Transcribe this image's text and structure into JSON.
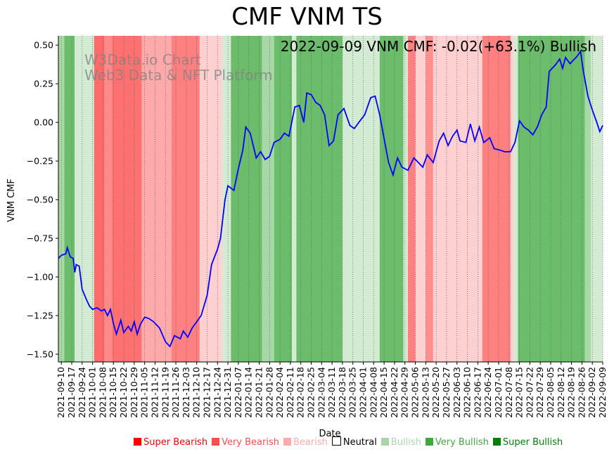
{
  "chart_data": {
    "type": "line",
    "title": "CMF VNM TS",
    "xlabel": "Date",
    "ylabel": "VNM CMF",
    "annotation": "2022-09-09 VNM CMF: -0.02(+63.1%) Bullish",
    "watermark": [
      "W3Data.io Chart",
      "Web3 Data & NFT Platform"
    ],
    "xlim": [
      "2021-09-08",
      "2022-09-09"
    ],
    "ylim": [
      -1.55,
      0.56
    ],
    "yticks": [
      0.5,
      0.25,
      0.0,
      -0.25,
      -0.5,
      -0.75,
      -1.0,
      -1.25,
      -1.5
    ],
    "ytick_labels": [
      "0.50",
      "0.25",
      "0.00",
      "−0.25",
      "−0.50",
      "−0.75",
      "−1.00",
      "−1.25",
      "−1.50"
    ],
    "xtick_labels": [
      "2021-09-10",
      "2021-09-17",
      "2021-09-24",
      "2021-10-01",
      "2021-10-08",
      "2021-10-15",
      "2021-10-22",
      "2021-10-29",
      "2021-11-05",
      "2021-11-12",
      "2021-11-19",
      "2021-11-26",
      "2021-12-03",
      "2021-12-10",
      "2021-12-17",
      "2021-12-24",
      "2021-12-31",
      "2022-01-07",
      "2022-01-14",
      "2022-01-21",
      "2022-01-28",
      "2022-02-04",
      "2022-02-11",
      "2022-02-18",
      "2022-02-25",
      "2022-03-04",
      "2022-03-11",
      "2022-03-18",
      "2022-03-25",
      "2022-04-01",
      "2022-04-08",
      "2022-04-15",
      "2022-04-22",
      "2022-04-29",
      "2022-05-06",
      "2022-05-13",
      "2022-05-20",
      "2022-05-27",
      "2022-06-03",
      "2022-06-10",
      "2022-06-17",
      "2022-06-24",
      "2022-07-01",
      "2022-07-08",
      "2022-07-15",
      "2022-07-22",
      "2022-07-29",
      "2022-08-05",
      "2022-08-12",
      "2022-08-19",
      "2022-08-26",
      "2022-09-02",
      "2022-09-09"
    ],
    "series": [
      {
        "color": "#0000ff",
        "points": [
          [
            "2021-09-08",
            -0.88
          ],
          [
            "2021-09-10",
            -0.86
          ],
          [
            "2021-09-13",
            -0.85
          ],
          [
            "2021-09-14",
            -0.81
          ],
          [
            "2021-09-16",
            -0.87
          ],
          [
            "2021-09-18",
            -0.88
          ],
          [
            "2021-09-19",
            -0.97
          ],
          [
            "2021-09-20",
            -0.92
          ],
          [
            "2021-09-22",
            -0.93
          ],
          [
            "2021-09-24",
            -1.08
          ],
          [
            "2021-09-27",
            -1.15
          ],
          [
            "2021-09-29",
            -1.19
          ],
          [
            "2021-10-01",
            -1.21
          ],
          [
            "2021-10-04",
            -1.2
          ],
          [
            "2021-10-07",
            -1.22
          ],
          [
            "2021-10-09",
            -1.21
          ],
          [
            "2021-10-11",
            -1.25
          ],
          [
            "2021-10-13",
            -1.21
          ],
          [
            "2021-10-15",
            -1.3
          ],
          [
            "2021-10-17",
            -1.37
          ],
          [
            "2021-10-20",
            -1.28
          ],
          [
            "2021-10-22",
            -1.36
          ],
          [
            "2021-10-25",
            -1.32
          ],
          [
            "2021-10-27",
            -1.35
          ],
          [
            "2021-10-29",
            -1.29
          ],
          [
            "2021-10-31",
            -1.37
          ],
          [
            "2021-11-02",
            -1.31
          ],
          [
            "2021-11-05",
            -1.26
          ],
          [
            "2021-11-08",
            -1.27
          ],
          [
            "2021-11-11",
            -1.29
          ],
          [
            "2021-11-15",
            -1.33
          ],
          [
            "2021-11-19",
            -1.42
          ],
          [
            "2021-11-22",
            -1.45
          ],
          [
            "2021-11-25",
            -1.38
          ],
          [
            "2021-11-29",
            -1.4
          ],
          [
            "2021-12-01",
            -1.35
          ],
          [
            "2021-12-04",
            -1.39
          ],
          [
            "2021-12-07",
            -1.33
          ],
          [
            "2021-12-10",
            -1.29
          ],
          [
            "2021-12-13",
            -1.25
          ],
          [
            "2021-12-17",
            -1.12
          ],
          [
            "2021-12-20",
            -0.92
          ],
          [
            "2021-12-24",
            -0.82
          ],
          [
            "2021-12-26",
            -0.75
          ],
          [
            "2021-12-29",
            -0.5
          ],
          [
            "2021-12-31",
            -0.41
          ],
          [
            "2022-01-04",
            -0.44
          ],
          [
            "2022-01-07",
            -0.3
          ],
          [
            "2022-01-10",
            -0.18
          ],
          [
            "2022-01-12",
            -0.03
          ],
          [
            "2022-01-15",
            -0.07
          ],
          [
            "2022-01-19",
            -0.23
          ],
          [
            "2022-01-22",
            -0.19
          ],
          [
            "2022-01-25",
            -0.24
          ],
          [
            "2022-01-28",
            -0.22
          ],
          [
            "2022-01-31",
            -0.13
          ],
          [
            "2022-02-04",
            -0.11
          ],
          [
            "2022-02-07",
            -0.07
          ],
          [
            "2022-02-10",
            -0.09
          ],
          [
            "2022-02-14",
            0.1
          ],
          [
            "2022-02-17",
            0.11
          ],
          [
            "2022-02-20",
            0.0
          ],
          [
            "2022-02-22",
            0.19
          ],
          [
            "2022-02-25",
            0.18
          ],
          [
            "2022-02-28",
            0.13
          ],
          [
            "2022-03-03",
            0.11
          ],
          [
            "2022-03-06",
            0.05
          ],
          [
            "2022-03-09",
            -0.15
          ],
          [
            "2022-03-12",
            -0.12
          ],
          [
            "2022-03-15",
            0.05
          ],
          [
            "2022-03-19",
            0.09
          ],
          [
            "2022-03-23",
            -0.02
          ],
          [
            "2022-03-26",
            -0.04
          ],
          [
            "2022-03-29",
            0.0
          ],
          [
            "2022-04-02",
            0.05
          ],
          [
            "2022-04-06",
            0.16
          ],
          [
            "2022-04-09",
            0.17
          ],
          [
            "2022-04-12",
            0.05
          ],
          [
            "2022-04-18",
            -0.26
          ],
          [
            "2022-04-21",
            -0.34
          ],
          [
            "2022-04-24",
            -0.23
          ],
          [
            "2022-04-27",
            -0.29
          ],
          [
            "2022-05-01",
            -0.31
          ],
          [
            "2022-05-05",
            -0.23
          ],
          [
            "2022-05-08",
            -0.26
          ],
          [
            "2022-05-11",
            -0.29
          ],
          [
            "2022-05-14",
            -0.21
          ],
          [
            "2022-05-18",
            -0.26
          ],
          [
            "2022-05-22",
            -0.12
          ],
          [
            "2022-05-25",
            -0.07
          ],
          [
            "2022-05-28",
            -0.15
          ],
          [
            "2022-05-31",
            -0.09
          ],
          [
            "2022-06-03",
            -0.05
          ],
          [
            "2022-06-05",
            -0.12
          ],
          [
            "2022-06-09",
            -0.13
          ],
          [
            "2022-06-12",
            -0.01
          ],
          [
            "2022-06-15",
            -0.12
          ],
          [
            "2022-06-18",
            -0.03
          ],
          [
            "2022-06-21",
            -0.13
          ],
          [
            "2022-06-25",
            -0.1
          ],
          [
            "2022-06-28",
            -0.17
          ],
          [
            "2022-07-02",
            -0.18
          ],
          [
            "2022-07-05",
            -0.19
          ],
          [
            "2022-07-09",
            -0.19
          ],
          [
            "2022-07-12",
            -0.13
          ],
          [
            "2022-07-15",
            0.01
          ],
          [
            "2022-07-18",
            -0.03
          ],
          [
            "2022-07-21",
            -0.05
          ],
          [
            "2022-07-24",
            -0.08
          ],
          [
            "2022-07-27",
            -0.03
          ],
          [
            "2022-07-30",
            0.05
          ],
          [
            "2022-08-02",
            0.1
          ],
          [
            "2022-08-04",
            0.33
          ],
          [
            "2022-08-08",
            0.37
          ],
          [
            "2022-08-11",
            0.41
          ],
          [
            "2022-08-13",
            0.35
          ],
          [
            "2022-08-15",
            0.42
          ],
          [
            "2022-08-18",
            0.38
          ],
          [
            "2022-08-21",
            0.41
          ],
          [
            "2022-08-23",
            0.43
          ],
          [
            "2022-08-25",
            0.46
          ],
          [
            "2022-08-27",
            0.33
          ],
          [
            "2022-08-30",
            0.17
          ],
          [
            "2022-09-02",
            0.08
          ],
          [
            "2022-09-05",
            0.0
          ],
          [
            "2022-09-07",
            -0.06
          ],
          [
            "2022-09-09",
            -0.02
          ]
        ]
      }
    ],
    "bands": [
      [
        "2021-09-08",
        "2021-09-12",
        "#a8d8a8"
      ],
      [
        "2021-09-12",
        "2021-09-19",
        "#6bbd6b"
      ],
      [
        "2021-09-19",
        "2021-10-02",
        "#d2ebd2"
      ],
      [
        "2021-10-02",
        "2021-10-09",
        "#ff6b6b"
      ],
      [
        "2021-10-09",
        "2021-10-14",
        "#ff8a8a"
      ],
      [
        "2021-10-14",
        "2021-11-03",
        "#ff7070"
      ],
      [
        "2021-11-03",
        "2021-11-23",
        "#ffaaaa"
      ],
      [
        "2021-11-23",
        "2021-12-12",
        "#ff8080"
      ],
      [
        "2021-12-12",
        "2021-12-27",
        "#ffd0d0"
      ],
      [
        "2021-12-27",
        "2022-01-02",
        "#d2ebd2"
      ],
      [
        "2022-01-02",
        "2022-01-23",
        "#6bbd6b"
      ],
      [
        "2022-01-23",
        "2022-01-31",
        "#a8d8a8"
      ],
      [
        "2022-01-31",
        "2022-02-12",
        "#6bbd6b"
      ],
      [
        "2022-02-12",
        "2022-02-15",
        "#d2ebd2"
      ],
      [
        "2022-02-15",
        "2022-03-18",
        "#6bbd6b"
      ],
      [
        "2022-03-18",
        "2022-04-12",
        "#d2ebd2"
      ],
      [
        "2022-04-12",
        "2022-04-28",
        "#6bbd6b"
      ],
      [
        "2022-04-28",
        "2022-05-01",
        "#d2ebd2"
      ],
      [
        "2022-05-01",
        "2022-05-06",
        "#ff8080"
      ],
      [
        "2022-05-06",
        "2022-05-13",
        "#ffd0d0"
      ],
      [
        "2022-05-13",
        "2022-05-18",
        "#ff9090"
      ],
      [
        "2022-05-18",
        "2022-06-20",
        "#ffd0d0"
      ],
      [
        "2022-06-20",
        "2022-07-09",
        "#ff8080"
      ],
      [
        "2022-07-09",
        "2022-07-11",
        "#ffd0d0"
      ],
      [
        "2022-07-11",
        "2022-07-14",
        "#d2ebd2"
      ],
      [
        "2022-07-14",
        "2022-08-28",
        "#6bbd6b"
      ],
      [
        "2022-08-28",
        "2022-09-01",
        "#a8d8a8"
      ],
      [
        "2022-09-01",
        "2022-09-09",
        "#d2ebd2"
      ]
    ],
    "legend": [
      {
        "label": "Super Bearish",
        "color": "#ff0000"
      },
      {
        "label": "Very Bearish",
        "color": "#ff4d4d"
      },
      {
        "label": "Bearish",
        "color": "#ffaaaa"
      },
      {
        "label": "Neutral",
        "color": "#ffffff"
      },
      {
        "label": "Bullish",
        "color": "#aad5aa"
      },
      {
        "label": "Very Bullish",
        "color": "#3fa83f"
      },
      {
        "label": "Super Bullish",
        "color": "#007f00"
      }
    ]
  }
}
